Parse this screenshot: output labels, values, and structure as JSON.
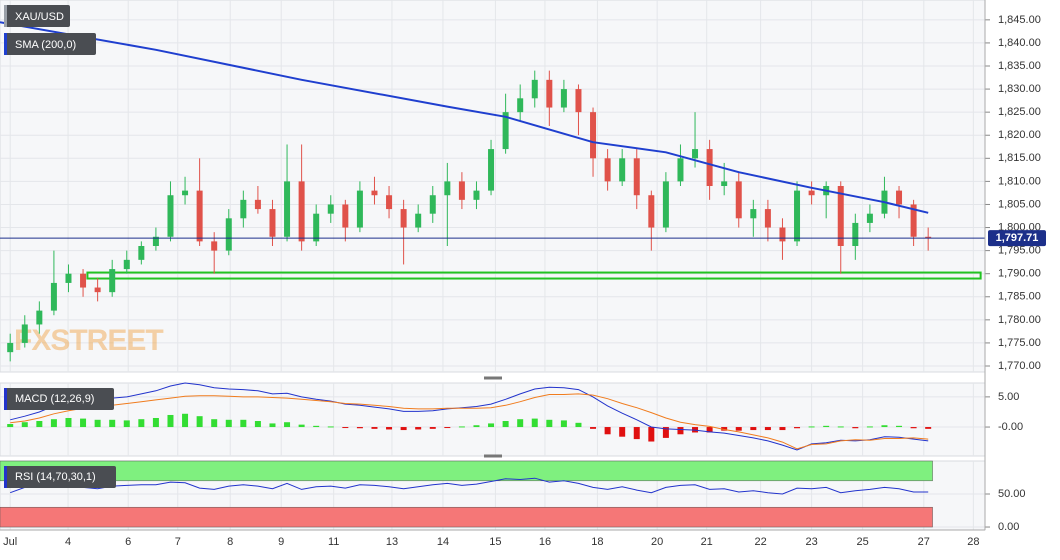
{
  "chart_data": [
    {
      "type": "candlestick",
      "title": "XAU/USD",
      "xlim": [
        -0.7,
        66.9
      ],
      "ylim": [
        1768.7,
        1849.3
      ],
      "yticks": [
        {
          "value": 1770,
          "label": "1,770.00"
        },
        {
          "value": 1775,
          "label": "1,775.00"
        },
        {
          "value": 1780,
          "label": "1,780.00"
        },
        {
          "value": 1785,
          "label": "1,785.00"
        },
        {
          "value": 1790,
          "label": "1,790.00"
        },
        {
          "value": 1795,
          "label": "1,795.00"
        },
        {
          "value": 1800,
          "label": "1,800.00"
        },
        {
          "value": 1805,
          "label": "1,805.00"
        },
        {
          "value": 1810,
          "label": "1,810.00"
        },
        {
          "value": 1815,
          "label": "1,815.00"
        },
        {
          "value": 1820,
          "label": "1,820.00"
        },
        {
          "value": 1825,
          "label": "1,825.00"
        },
        {
          "value": 1830,
          "label": "1,830.00"
        },
        {
          "value": 1835,
          "label": "1,835.00"
        },
        {
          "value": 1840,
          "label": "1,840.00"
        },
        {
          "value": 1845,
          "label": "1,845.00"
        }
      ],
      "grid": true,
      "up_color": "#2fb85a",
      "down_color": "#e0524a",
      "candles": [
        [
          1773,
          1777,
          1771,
          1775
        ],
        [
          1775,
          1781,
          1774,
          1779
        ],
        [
          1779,
          1784,
          1777,
          1782
        ],
        [
          1782,
          1795,
          1781,
          1788
        ],
        [
          1788,
          1792,
          1786,
          1790
        ],
        [
          1790,
          1791,
          1785,
          1787
        ],
        [
          1787,
          1789,
          1784,
          1786
        ],
        [
          1786,
          1793,
          1785,
          1791
        ],
        [
          1791,
          1795,
          1790,
          1793
        ],
        [
          1793,
          1797,
          1792,
          1796
        ],
        [
          1796,
          1800,
          1795,
          1798
        ],
        [
          1798,
          1810,
          1797,
          1807
        ],
        [
          1807,
          1811,
          1805,
          1808
        ],
        [
          1808,
          1815,
          1796,
          1797
        ],
        [
          1797,
          1799,
          1790,
          1795
        ],
        [
          1795,
          1804,
          1794,
          1802
        ],
        [
          1802,
          1808,
          1800,
          1806
        ],
        [
          1806,
          1809,
          1803,
          1804
        ],
        [
          1804,
          1806,
          1796,
          1798
        ],
        [
          1798,
          1818,
          1797,
          1810
        ],
        [
          1810,
          1818,
          1795,
          1797
        ],
        [
          1797,
          1805,
          1796,
          1803
        ],
        [
          1803,
          1807,
          1801,
          1805
        ],
        [
          1805,
          1806,
          1797,
          1800
        ],
        [
          1800,
          1810,
          1799,
          1808
        ],
        [
          1808,
          1811,
          1805,
          1807
        ],
        [
          1807,
          1809,
          1802,
          1804
        ],
        [
          1804,
          1806,
          1792,
          1800
        ],
        [
          1800,
          1805,
          1799,
          1803
        ],
        [
          1803,
          1809,
          1801,
          1807
        ],
        [
          1807,
          1814,
          1796,
          1810
        ],
        [
          1810,
          1812,
          1804,
          1806
        ],
        [
          1806,
          1810,
          1804,
          1808
        ],
        [
          1808,
          1819,
          1807,
          1817
        ],
        [
          1817,
          1829,
          1816,
          1825
        ],
        [
          1825,
          1831,
          1823,
          1828
        ],
        [
          1828,
          1834,
          1826,
          1832
        ],
        [
          1832,
          1834,
          1822,
          1826
        ],
        [
          1826,
          1832,
          1825,
          1830
        ],
        [
          1830,
          1831,
          1820,
          1825
        ],
        [
          1825,
          1826,
          1811,
          1815
        ],
        [
          1815,
          1817,
          1808,
          1810
        ],
        [
          1810,
          1817,
          1809,
          1815
        ],
        [
          1815,
          1817,
          1804,
          1807
        ],
        [
          1807,
          1808,
          1795,
          1800
        ],
        [
          1800,
          1812,
          1799,
          1810
        ],
        [
          1810,
          1818,
          1809,
          1815
        ],
        [
          1815,
          1825,
          1813,
          1817
        ],
        [
          1817,
          1819,
          1806,
          1809
        ],
        [
          1809,
          1814,
          1807,
          1810
        ],
        [
          1810,
          1812,
          1800,
          1802
        ],
        [
          1802,
          1806,
          1798,
          1804
        ],
        [
          1804,
          1806,
          1797,
          1800
        ],
        [
          1800,
          1802,
          1793,
          1797
        ],
        [
          1797,
          1810,
          1796,
          1808
        ],
        [
          1808,
          1810,
          1805,
          1807
        ],
        [
          1807,
          1810,
          1802,
          1809
        ],
        [
          1809,
          1810,
          1790,
          1796
        ],
        [
          1796,
          1803,
          1793,
          1801
        ],
        [
          1801,
          1805,
          1799,
          1803
        ],
        [
          1803,
          1811,
          1802,
          1808
        ],
        [
          1808,
          1809,
          1802,
          1805
        ],
        [
          1805,
          1806,
          1796,
          1798
        ],
        [
          1798,
          1800,
          1795,
          1797.71
        ]
      ],
      "sma": {
        "name": "SMA (200,0)",
        "color": "#1f3fcf",
        "x": [
          -0.7,
          10,
          20,
          30,
          34,
          40,
          45,
          50,
          55,
          60,
          63
        ],
        "values": [
          1844.5,
          1838.5,
          1832,
          1826.2,
          1824,
          1818.5,
          1816.3,
          1812,
          1808.6,
          1805.5,
          1803.2
        ]
      },
      "support": {
        "value": 1789.6,
        "x": [
          5.3,
          66.6
        ],
        "color": "#22c322"
      },
      "last_price": {
        "value": 1797.71,
        "label": "1,797.71",
        "color": "#1c2f8a"
      },
      "watermark": "FXSTREET"
    },
    {
      "type": "macd",
      "title": "MACD (12,26,9)",
      "xlim": [
        -0.7,
        66.9
      ],
      "ylim": [
        -4.8,
        7.3
      ],
      "yticks": [
        {
          "value": 5,
          "label": "5.00"
        },
        {
          "value": 0,
          "label": "-0.00"
        }
      ],
      "histogram": {
        "up_color": "#33dd33",
        "down_color": "#e01010",
        "values": [
          0.5,
          0.8,
          1.0,
          1.3,
          1.5,
          1.4,
          1.2,
          1.2,
          1.1,
          1.3,
          1.5,
          2.0,
          2.2,
          1.8,
          1.3,
          1.2,
          1.2,
          1.0,
          0.6,
          0.8,
          0.4,
          0.2,
          0.1,
          -0.1,
          -0.2,
          -0.3,
          -0.4,
          -0.5,
          -0.4,
          -0.3,
          -0.1,
          0.1,
          0.3,
          0.6,
          1.0,
          1.3,
          1.4,
          1.2,
          1.1,
          0.7,
          -0.3,
          -1.2,
          -1.6,
          -2.0,
          -2.4,
          -1.8,
          -1.2,
          -0.9,
          -0.9,
          -0.6,
          -0.6,
          -0.5,
          -0.5,
          -0.5,
          -0.2,
          0.1,
          0.2,
          0.1,
          -0.2,
          0.1,
          0.3,
          0.2,
          -0.2,
          -0.3
        ]
      },
      "series": [
        {
          "color": "#2233cc",
          "values": [
            1.2,
            1.8,
            2.5,
            3.5,
            4.2,
            4.5,
            4.6,
            4.8,
            5.0,
            5.5,
            6.0,
            6.8,
            7.3,
            7.0,
            6.5,
            6.3,
            6.2,
            6.0,
            5.5,
            5.6,
            5.0,
            4.6,
            4.3,
            3.8,
            3.6,
            3.3,
            3.0,
            2.6,
            2.6,
            2.7,
            3.0,
            3.2,
            3.4,
            3.8,
            4.6,
            5.5,
            6.3,
            6.6,
            6.5,
            6.2,
            5.0,
            3.5,
            2.3,
            1.2,
            0.0,
            -0.3,
            -0.4,
            -0.5,
            -0.8,
            -1.0,
            -1.4,
            -1.8,
            -2.3,
            -3.0,
            -3.8,
            -2.8,
            -2.6,
            -2.2,
            -2.3,
            -2.1,
            -1.6,
            -1.7,
            -2.0,
            -2.3
          ]
        },
        {
          "color": "#f07c1e",
          "values": [
            0.7,
            1.0,
            1.5,
            2.2,
            2.7,
            3.1,
            3.4,
            3.6,
            3.9,
            4.2,
            4.5,
            4.8,
            5.1,
            5.2,
            5.2,
            5.1,
            5.0,
            5.0,
            4.9,
            4.8,
            4.6,
            4.4,
            4.2,
            3.9,
            3.8,
            3.6,
            3.4,
            3.1,
            3.0,
            3.0,
            3.1,
            3.1,
            3.1,
            3.2,
            3.6,
            4.2,
            4.9,
            5.4,
            5.4,
            5.5,
            5.3,
            4.7,
            3.9,
            3.2,
            2.4,
            1.5,
            0.8,
            0.4,
            0.1,
            -0.4,
            -0.8,
            -1.3,
            -1.8,
            -2.5,
            -3.6,
            -2.9,
            -2.8,
            -2.3,
            -2.1,
            -2.2,
            -1.9,
            -1.9,
            -1.8,
            -2.0
          ]
        }
      ]
    },
    {
      "type": "line",
      "title": "RSI (14,70,30,1)",
      "xlim": [
        -0.7,
        66.9
      ],
      "ylim": [
        -4.5,
        100
      ],
      "yticks": [
        {
          "value": 50,
          "label": "50.00"
        },
        {
          "value": 0,
          "label": "0.00"
        }
      ],
      "bands": [
        {
          "from": 70,
          "to": 100,
          "color": "#7ff07f"
        },
        {
          "from": 0,
          "to": 30,
          "color": "#f57777"
        }
      ],
      "series": [
        {
          "color": "#2233cc",
          "values": [
            52,
            60,
            63,
            66,
            64,
            60,
            58,
            62,
            63,
            64,
            64,
            68,
            67,
            59,
            57,
            62,
            64,
            62,
            58,
            66,
            57,
            61,
            62,
            59,
            64,
            63,
            61,
            58,
            61,
            64,
            66,
            63,
            65,
            69,
            73,
            72,
            74,
            68,
            70,
            66,
            60,
            57,
            61,
            56,
            52,
            60,
            63,
            64,
            57,
            58,
            53,
            55,
            52,
            50,
            59,
            58,
            60,
            52,
            55,
            57,
            60,
            58,
            53,
            53
          ]
        }
      ],
      "xticks": [
        {
          "value": 0,
          "label": "Jul"
        },
        {
          "value": 3.97,
          "label": "4"
        },
        {
          "value": 8.1,
          "label": "6"
        },
        {
          "value": 11.5,
          "label": "7"
        },
        {
          "value": 15.1,
          "label": "8"
        },
        {
          "value": 18.6,
          "label": "9"
        },
        {
          "value": 22.2,
          "label": "11"
        },
        {
          "value": 26.2,
          "label": "13"
        },
        {
          "value": 29.7,
          "label": "14"
        },
        {
          "value": 33.3,
          "label": "15"
        },
        {
          "value": 36.7,
          "label": "16"
        },
        {
          "value": 40.3,
          "label": "18"
        },
        {
          "value": 44.4,
          "label": "20"
        },
        {
          "value": 47.8,
          "label": "21"
        },
        {
          "value": 51.5,
          "label": "22"
        },
        {
          "value": 55.0,
          "label": "23"
        },
        {
          "value": 58.5,
          "label": "25"
        },
        {
          "value": 62.7,
          "label": "27"
        },
        {
          "value": 66.1,
          "label": "28"
        }
      ]
    }
  ]
}
